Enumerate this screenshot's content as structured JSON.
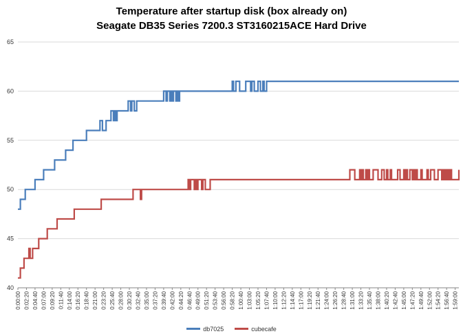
{
  "chart_data": {
    "type": "line",
    "title": "Temperature after startup disk (box already on)",
    "subtitle": "Seagate DB35 Series 7200.3 ST3160215ACE Hard Drive",
    "ylim": [
      40,
      65
    ],
    "yticks": [
      40,
      45,
      50,
      55,
      60,
      65
    ],
    "xlim_seconds": [
      0,
      7200
    ],
    "x_tick_labels": [
      "0:00:00",
      "0:02:20",
      "0:04:40",
      "0:07:00",
      "0:09:20",
      "0:11:40",
      "0:14:00",
      "0:16:20",
      "0:18:40",
      "0:21:00",
      "0:23:20",
      "0:25:40",
      "0:28:00",
      "0:30:20",
      "0:32:40",
      "0:35:00",
      "0:37:20",
      "0:39:40",
      "0:42:00",
      "0:44:20",
      "0:46:40",
      "0:49:00",
      "0:51:20",
      "0:53:40",
      "0:56:00",
      "0:58:20",
      "1:00:40",
      "1:03:00",
      "1:05:20",
      "1:07:40",
      "1:10:00",
      "1:12:20",
      "1:14:40",
      "1:17:00",
      "1:19:20",
      "1:21:40",
      "1:24:00",
      "1:26:20",
      "1:28:40",
      "1:31:00",
      "1:33:20",
      "1:35:40",
      "1:38:00",
      "1:40:20",
      "1:42:40",
      "1:45:00",
      "1:47:20",
      "1:49:40",
      "1:52:00",
      "1:54:20",
      "1:56:40",
      "1:59:00"
    ],
    "grid": true,
    "legend_position": "bottom",
    "series": [
      {
        "name": "db7025",
        "color": "#4a7ebb",
        "step_changes": [
          [
            "0:00:00",
            48
          ],
          [
            "0:00:40",
            49
          ],
          [
            "0:02:00",
            50
          ],
          [
            "0:04:40",
            51
          ],
          [
            "0:07:00",
            52
          ],
          [
            "0:10:00",
            53
          ],
          [
            "0:13:00",
            54
          ],
          [
            "0:14:50",
            55
          ],
          [
            "0:18:40",
            56
          ],
          [
            "0:22:20",
            57
          ],
          [
            "0:25:30",
            58
          ],
          [
            "0:30:30",
            59
          ],
          [
            "0:40:00",
            60
          ],
          [
            "0:58:00",
            61
          ]
        ],
        "fluctuation_windows": [
          [
            "0:22:00",
            "0:23:40",
            56,
            57
          ],
          [
            "0:25:00",
            "0:26:40",
            57,
            58
          ],
          [
            "0:30:00",
            "0:32:00",
            58,
            59
          ],
          [
            "0:39:40",
            "0:43:40",
            59,
            60
          ],
          [
            "0:57:40",
            "1:07:20",
            60,
            61
          ]
        ]
      },
      {
        "name": "cubecafe",
        "color": "#be4b48",
        "step_changes": [
          [
            "0:00:00",
            41
          ],
          [
            "0:00:40",
            42
          ],
          [
            "0:01:40",
            43
          ],
          [
            "0:03:30",
            44
          ],
          [
            "0:05:30",
            45
          ],
          [
            "0:08:30",
            46
          ],
          [
            "0:10:40",
            47
          ],
          [
            "0:15:20",
            48
          ],
          [
            "0:22:40",
            49
          ],
          [
            "0:32:00",
            50
          ],
          [
            "0:46:30",
            51
          ],
          [
            "1:30:40",
            52
          ]
        ],
        "fluctuation_windows": [
          [
            "0:03:00",
            "0:04:20",
            43,
            44
          ],
          [
            "0:08:00",
            "0:09:40",
            45,
            46
          ],
          [
            "0:31:20",
            "0:33:20",
            49,
            50
          ],
          [
            "0:45:40",
            "0:52:20",
            50,
            51
          ],
          [
            "1:30:20",
            "1:59:40",
            51,
            52
          ]
        ]
      }
    ]
  }
}
